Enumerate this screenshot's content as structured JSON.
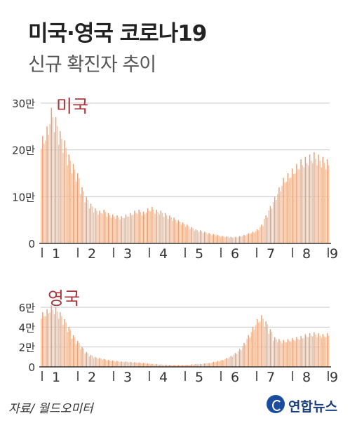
{
  "header": {
    "title": "미국·영국 코로나19",
    "subtitle": "신규 확진자 추이"
  },
  "colors": {
    "bar": "#e8a27a",
    "bar_light": "#f3c4a6",
    "series_label": "#a8373d",
    "axis": "#333333",
    "grid": "#c8c8c8"
  },
  "source": "자료/ 월드오미터",
  "logo_text": "연합뉴스",
  "chart_data": [
    {
      "type": "bar",
      "series_label": "미국",
      "x": [
        "1",
        "2",
        "3",
        "4",
        "5",
        "6",
        "7",
        "8",
        "9"
      ],
      "x_note": "month of year; ~8 weekly values per month",
      "ylim": [
        0,
        300000
      ],
      "yticks": [
        0,
        100000,
        200000,
        300000
      ],
      "ytick_labels": [
        "0",
        "10만",
        "20만",
        "30만"
      ],
      "weekly_values": [
        230000,
        250000,
        290000,
        270000,
        240000,
        220000,
        190000,
        170000,
        150000,
        120000,
        100000,
        85000,
        75000,
        70000,
        72000,
        65000,
        62000,
        60000,
        58000,
        62000,
        65000,
        70000,
        72000,
        68000,
        75000,
        78000,
        72000,
        70000,
        65000,
        60000,
        55000,
        50000,
        45000,
        40000,
        35000,
        30000,
        28000,
        25000,
        22000,
        20000,
        18000,
        16000,
        15000,
        14000,
        14000,
        16000,
        18000,
        22000,
        25000,
        30000,
        40000,
        60000,
        80000,
        100000,
        120000,
        140000,
        150000,
        160000,
        170000,
        180000,
        185000,
        190000,
        195000,
        190000,
        185000,
        180000
      ]
    },
    {
      "type": "bar",
      "series_label": "영국",
      "x": [
        "1",
        "2",
        "3",
        "4",
        "5",
        "6",
        "7",
        "8",
        "9"
      ],
      "x_note": "month of year; ~8 weekly values per month",
      "ylim": [
        0,
        60000
      ],
      "yticks": [
        0,
        20000,
        40000,
        60000
      ],
      "ytick_labels": [
        "0",
        "2만",
        "4만",
        "6만"
      ],
      "weekly_values": [
        55000,
        58000,
        62000,
        60000,
        55000,
        48000,
        40000,
        32000,
        26000,
        20000,
        15000,
        12000,
        10000,
        9000,
        8000,
        7000,
        6500,
        6000,
        5500,
        5500,
        5000,
        4800,
        4500,
        4000,
        3500,
        3000,
        2800,
        2500,
        2300,
        2200,
        2000,
        2000,
        2000,
        2200,
        2500,
        2800,
        3000,
        3500,
        4000,
        5000,
        6000,
        7000,
        9000,
        11000,
        14000,
        18000,
        24000,
        32000,
        40000,
        48000,
        52000,
        46000,
        38000,
        30000,
        28000,
        27000,
        28000,
        29000,
        30000,
        31000,
        33000,
        34000,
        35000,
        34000,
        33000,
        34000
      ]
    }
  ]
}
